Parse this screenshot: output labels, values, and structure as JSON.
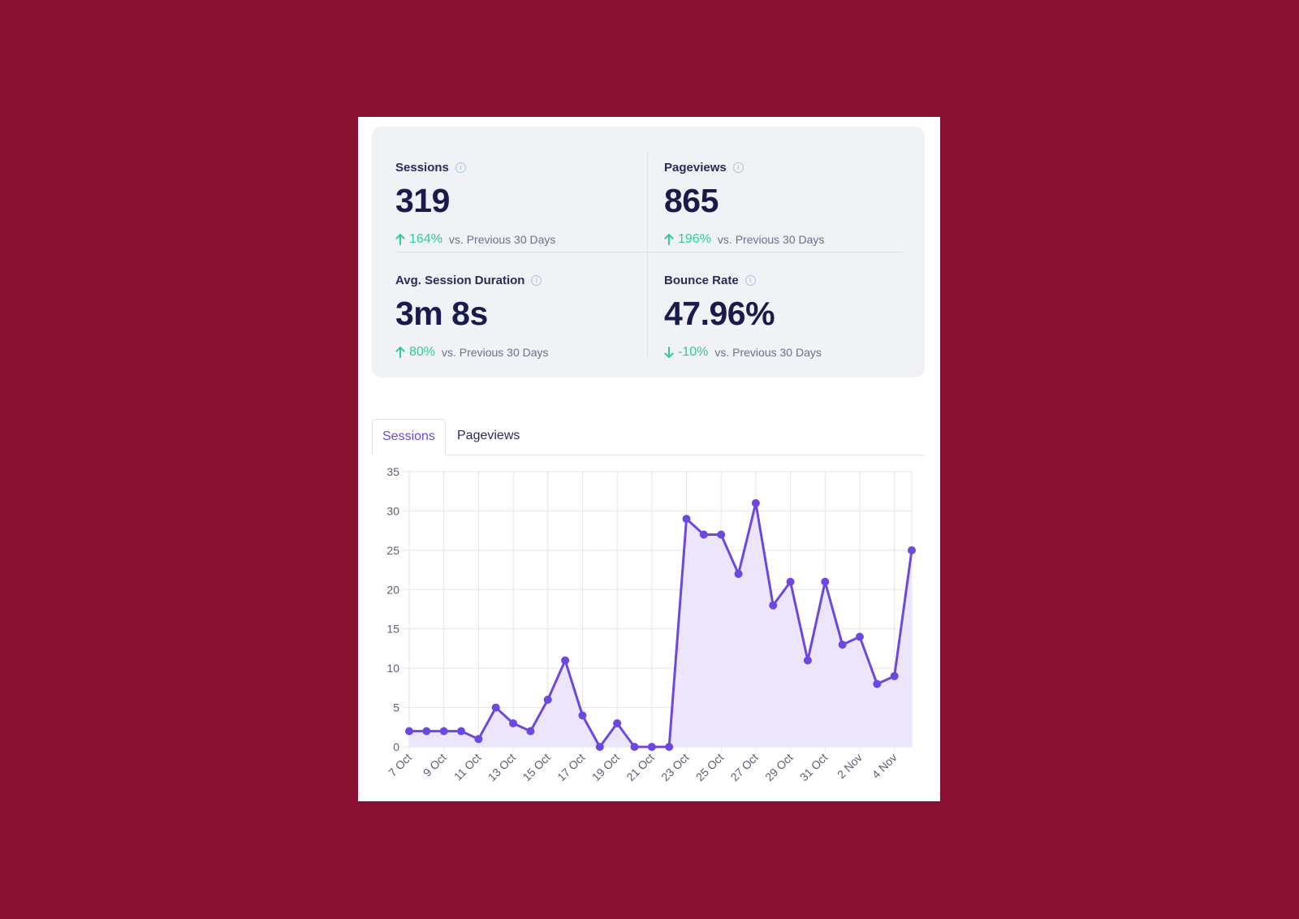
{
  "stats": [
    {
      "label": "Sessions",
      "value": "319",
      "change": "164%",
      "direction": "up",
      "note": "vs. Previous 30 Days"
    },
    {
      "label": "Pageviews",
      "value": "865",
      "change": "196%",
      "direction": "up",
      "note": "vs. Previous 30 Days"
    },
    {
      "label": "Avg. Session Duration",
      "value": "3m 8s",
      "change": "80%",
      "direction": "up",
      "note": "vs. Previous 30 Days"
    },
    {
      "label": "Bounce Rate",
      "value": "47.96%",
      "change": "-10%",
      "direction": "down",
      "note": "vs. Previous 30 Days"
    }
  ],
  "tabs": [
    {
      "label": "Sessions",
      "active": true
    },
    {
      "label": "Pageviews",
      "active": false
    }
  ],
  "colors": {
    "background": "#8a1033",
    "accent": "#6d48e0",
    "positive": "#2fcb9a",
    "area_fill": "#ece6fc"
  },
  "chart_data": {
    "type": "line",
    "x": [
      "7 Oct",
      "8 Oct",
      "9 Oct",
      "10 Oct",
      "11 Oct",
      "12 Oct",
      "13 Oct",
      "14 Oct",
      "15 Oct",
      "16 Oct",
      "17 Oct",
      "18 Oct",
      "19 Oct",
      "20 Oct",
      "21 Oct",
      "22 Oct",
      "23 Oct",
      "24 Oct",
      "25 Oct",
      "26 Oct",
      "27 Oct",
      "28 Oct",
      "29 Oct",
      "30 Oct",
      "31 Oct",
      "1 Nov",
      "2 Nov",
      "3 Nov",
      "4 Nov",
      "5 Nov"
    ],
    "series": [
      {
        "values": [
          2,
          2,
          2,
          2,
          1,
          5,
          3,
          2,
          6,
          11,
          4,
          0,
          3,
          0,
          0,
          0,
          29,
          27,
          27,
          22,
          31,
          18,
          21,
          11,
          21,
          13,
          14,
          8,
          9,
          25
        ]
      }
    ],
    "x_tick_labels": [
      "7 Oct",
      "9 Oct",
      "11 Oct",
      "13 Oct",
      "15 Oct",
      "17 Oct",
      "19 Oct",
      "21 Oct",
      "23 Oct",
      "25 Oct",
      "27 Oct",
      "29 Oct",
      "31 Oct",
      "2 Nov",
      "4 Nov"
    ],
    "y_ticks": [
      0,
      5,
      10,
      15,
      20,
      25,
      30,
      35
    ],
    "ylim": [
      0,
      35
    ],
    "area_filled": true,
    "grid": true
  }
}
